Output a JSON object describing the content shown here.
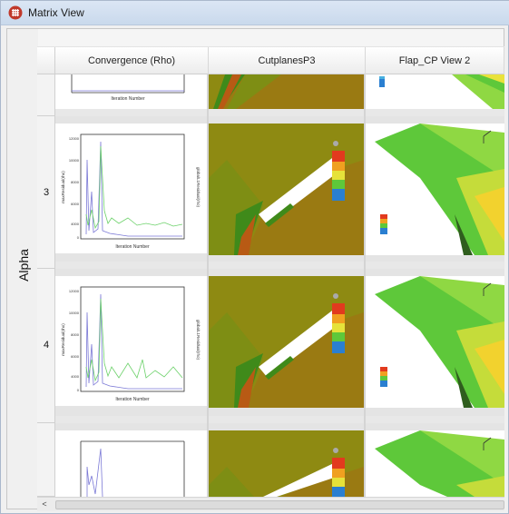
{
  "window": {
    "title": "Matrix View",
    "icon": "grid-circle-icon"
  },
  "matrix": {
    "axis_label": "Alpha",
    "columns": [
      "Convergence (Rho)",
      "CutplanesP3",
      "Flap_CP View 2"
    ],
    "rows": [
      "3",
      "4"
    ]
  },
  "plot": {
    "x_label": "Iteration Number",
    "y_left_label": "maxResidual(rho)",
    "y_right_label": "globalL1Residual(rho)"
  },
  "colors": {
    "titlebar": "#d3e1f2",
    "cutplane_bg": "#9a8a10",
    "cutplane_green": "#3f8a1a",
    "cutplane_orange": "#b85a14",
    "flap_green": "#5ec83a",
    "residual_blue": "#7b79d6",
    "residual_green": "#6cd16a"
  },
  "scroll": {
    "left_arrow": "<"
  }
}
